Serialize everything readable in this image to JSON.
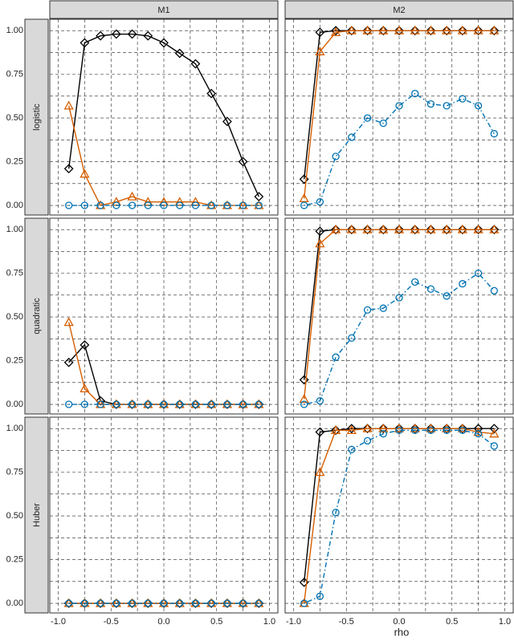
{
  "chart_data": {
    "type": "line",
    "x_label": "rho",
    "columns": [
      "M1",
      "M2"
    ],
    "rows": [
      "logistic",
      "quadratic",
      "Huber"
    ],
    "x": [
      -0.9,
      -0.75,
      -0.6,
      -0.45,
      -0.3,
      -0.15,
      0,
      0.15,
      0.3,
      0.45,
      0.6,
      0.75,
      0.9
    ],
    "xlim": [
      -1.08,
      1.08
    ],
    "xticks": [
      {
        "value": -1,
        "label": "-1.0"
      },
      {
        "value": -0.5,
        "label": "-0.5"
      },
      {
        "value": 0,
        "label": "0.0"
      },
      {
        "value": 0.5,
        "label": "0.5"
      },
      {
        "value": 1,
        "label": "1.0"
      }
    ],
    "ylim": [
      -0.055,
      1.065
    ],
    "yticks": [
      {
        "value": 0,
        "label": "0.00"
      },
      {
        "value": 0.25,
        "label": "0.25"
      },
      {
        "value": 0.5,
        "label": "0.50"
      },
      {
        "value": 0.75,
        "label": "0.75"
      },
      {
        "value": 1,
        "label": "1.00"
      }
    ],
    "grid": true,
    "panels": [
      [
        {
          "series": [
            {
              "color": "#000000",
              "marker": "diamond",
              "dash": "solid",
              "values": [
                0.21,
                0.93,
                0.97,
                0.98,
                0.98,
                0.97,
                0.93,
                0.87,
                0.81,
                0.64,
                0.48,
                0.25,
                0.05
              ]
            },
            {
              "color": "#d55e00",
              "marker": "triangle",
              "dash": "solid",
              "values": [
                0.57,
                0.18,
                0.0,
                0.02,
                0.05,
                0.02,
                0.02,
                0.02,
                0.02,
                0.0,
                0.0,
                0.0,
                0.0
              ]
            },
            {
              "color": "#0072b2",
              "marker": "circle",
              "dash": "dotdash",
              "values": [
                0,
                0,
                0,
                0,
                0,
                0,
                0,
                0,
                0,
                0,
                0,
                0,
                0
              ]
            }
          ]
        },
        {
          "series": [
            {
              "color": "#000000",
              "marker": "diamond",
              "dash": "solid",
              "values": [
                0.15,
                0.99,
                1,
                1,
                1,
                1,
                1,
                1,
                1,
                1,
                1,
                1,
                1
              ]
            },
            {
              "color": "#d55e00",
              "marker": "triangle",
              "dash": "solid",
              "values": [
                0.04,
                0.88,
                0.99,
                1,
                1,
                1,
                1,
                1,
                1,
                1,
                1,
                1,
                1
              ]
            },
            {
              "color": "#0072b2",
              "marker": "circle",
              "dash": "dotdash",
              "values": [
                0.0,
                0.02,
                0.28,
                0.39,
                0.5,
                0.47,
                0.57,
                0.64,
                0.58,
                0.57,
                0.61,
                0.57,
                0.41
              ]
            }
          ]
        }
      ],
      [
        {
          "series": [
            {
              "color": "#000000",
              "marker": "diamond",
              "dash": "solid",
              "values": [
                0.24,
                0.34,
                0.02,
                0,
                0,
                0,
                0,
                0,
                0,
                0,
                0,
                0,
                0
              ]
            },
            {
              "color": "#d55e00",
              "marker": "triangle",
              "dash": "solid",
              "values": [
                0.47,
                0.09,
                0.0,
                0,
                0,
                0,
                0,
                0,
                0,
                0,
                0,
                0,
                0
              ]
            },
            {
              "color": "#0072b2",
              "marker": "circle",
              "dash": "dotdash",
              "values": [
                0,
                0,
                0,
                0,
                0,
                0,
                0,
                0,
                0,
                0,
                0,
                0,
                0
              ]
            }
          ]
        },
        {
          "series": [
            {
              "color": "#000000",
              "marker": "diamond",
              "dash": "solid",
              "values": [
                0.14,
                0.99,
                1,
                1,
                1,
                1,
                1,
                1,
                1,
                1,
                1,
                1,
                1
              ]
            },
            {
              "color": "#d55e00",
              "marker": "triangle",
              "dash": "solid",
              "values": [
                0.03,
                0.92,
                1,
                1,
                1,
                1,
                1,
                1,
                1,
                1,
                1,
                1,
                1
              ]
            },
            {
              "color": "#0072b2",
              "marker": "circle",
              "dash": "dotdash",
              "values": [
                0.0,
                0.02,
                0.27,
                0.38,
                0.54,
                0.55,
                0.61,
                0.7,
                0.66,
                0.62,
                0.69,
                0.75,
                0.65
              ]
            }
          ]
        }
      ],
      [
        {
          "series": [
            {
              "color": "#000000",
              "marker": "diamond",
              "dash": "solid",
              "values": [
                0,
                0,
                0,
                0,
                0,
                0,
                0,
                0,
                0,
                0,
                0,
                0,
                0
              ]
            },
            {
              "color": "#d55e00",
              "marker": "triangle",
              "dash": "solid",
              "values": [
                0,
                0,
                0,
                0,
                0,
                0,
                0,
                0,
                0,
                0,
                0,
                0,
                0
              ]
            },
            {
              "color": "#0072b2",
              "marker": "circle",
              "dash": "dotdash",
              "values": [
                0,
                0,
                0,
                0,
                0,
                0,
                0,
                0,
                0,
                0,
                0,
                0,
                0
              ]
            }
          ]
        },
        {
          "series": [
            {
              "color": "#000000",
              "marker": "diamond",
              "dash": "solid",
              "values": [
                0.12,
                0.98,
                0.99,
                1,
                1,
                1,
                1,
                1,
                1,
                1,
                1,
                1,
                1
              ]
            },
            {
              "color": "#d55e00",
              "marker": "triangle",
              "dash": "solid",
              "values": [
                0.0,
                0.75,
                0.99,
                0.99,
                1,
                1,
                1,
                1,
                1,
                1,
                1,
                0.98,
                0.97
              ]
            },
            {
              "color": "#0072b2",
              "marker": "circle",
              "dash": "dotdash",
              "values": [
                0.0,
                0.04,
                0.52,
                0.88,
                0.93,
                0.97,
                0.99,
                0.99,
                0.99,
                0.99,
                0.99,
                0.97,
                0.9
              ]
            }
          ]
        }
      ]
    ]
  }
}
